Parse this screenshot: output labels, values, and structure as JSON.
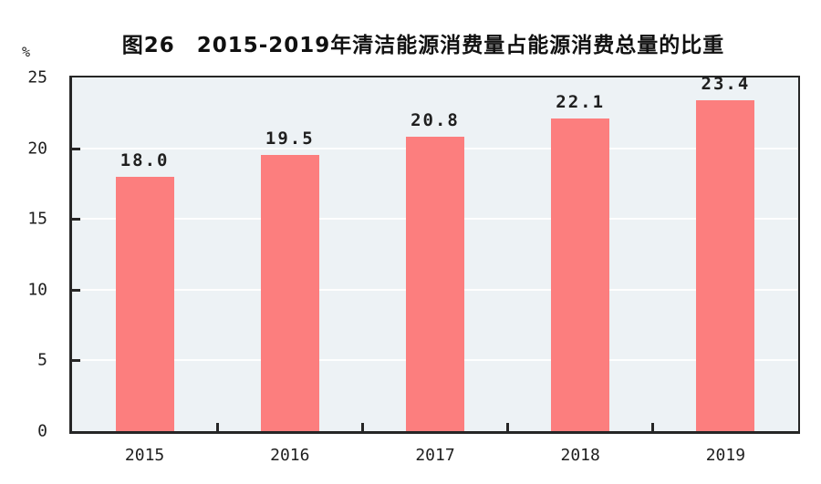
{
  "chart_data": {
    "type": "bar",
    "title": "图26　2015-2019年清洁能源消费量占能源消费总量的比重",
    "unit_label": "%",
    "categories": [
      "2015",
      "2016",
      "2017",
      "2018",
      "2019"
    ],
    "values": [
      18.0,
      19.5,
      20.8,
      22.1,
      23.4
    ],
    "data_labels": [
      "18.0",
      "19.5",
      "20.8",
      "22.1",
      "23.4"
    ],
    "xlabel": "",
    "ylabel": "%",
    "ylim": [
      0,
      25
    ],
    "yticks": [
      0,
      5,
      10,
      15,
      20,
      25
    ],
    "grid": true,
    "legend_position": "none",
    "bar_color": "#FC7E7E",
    "plot_background": "#EDF2F5",
    "gridline_color": "#FFFFFF",
    "axis_color": "#262626"
  }
}
